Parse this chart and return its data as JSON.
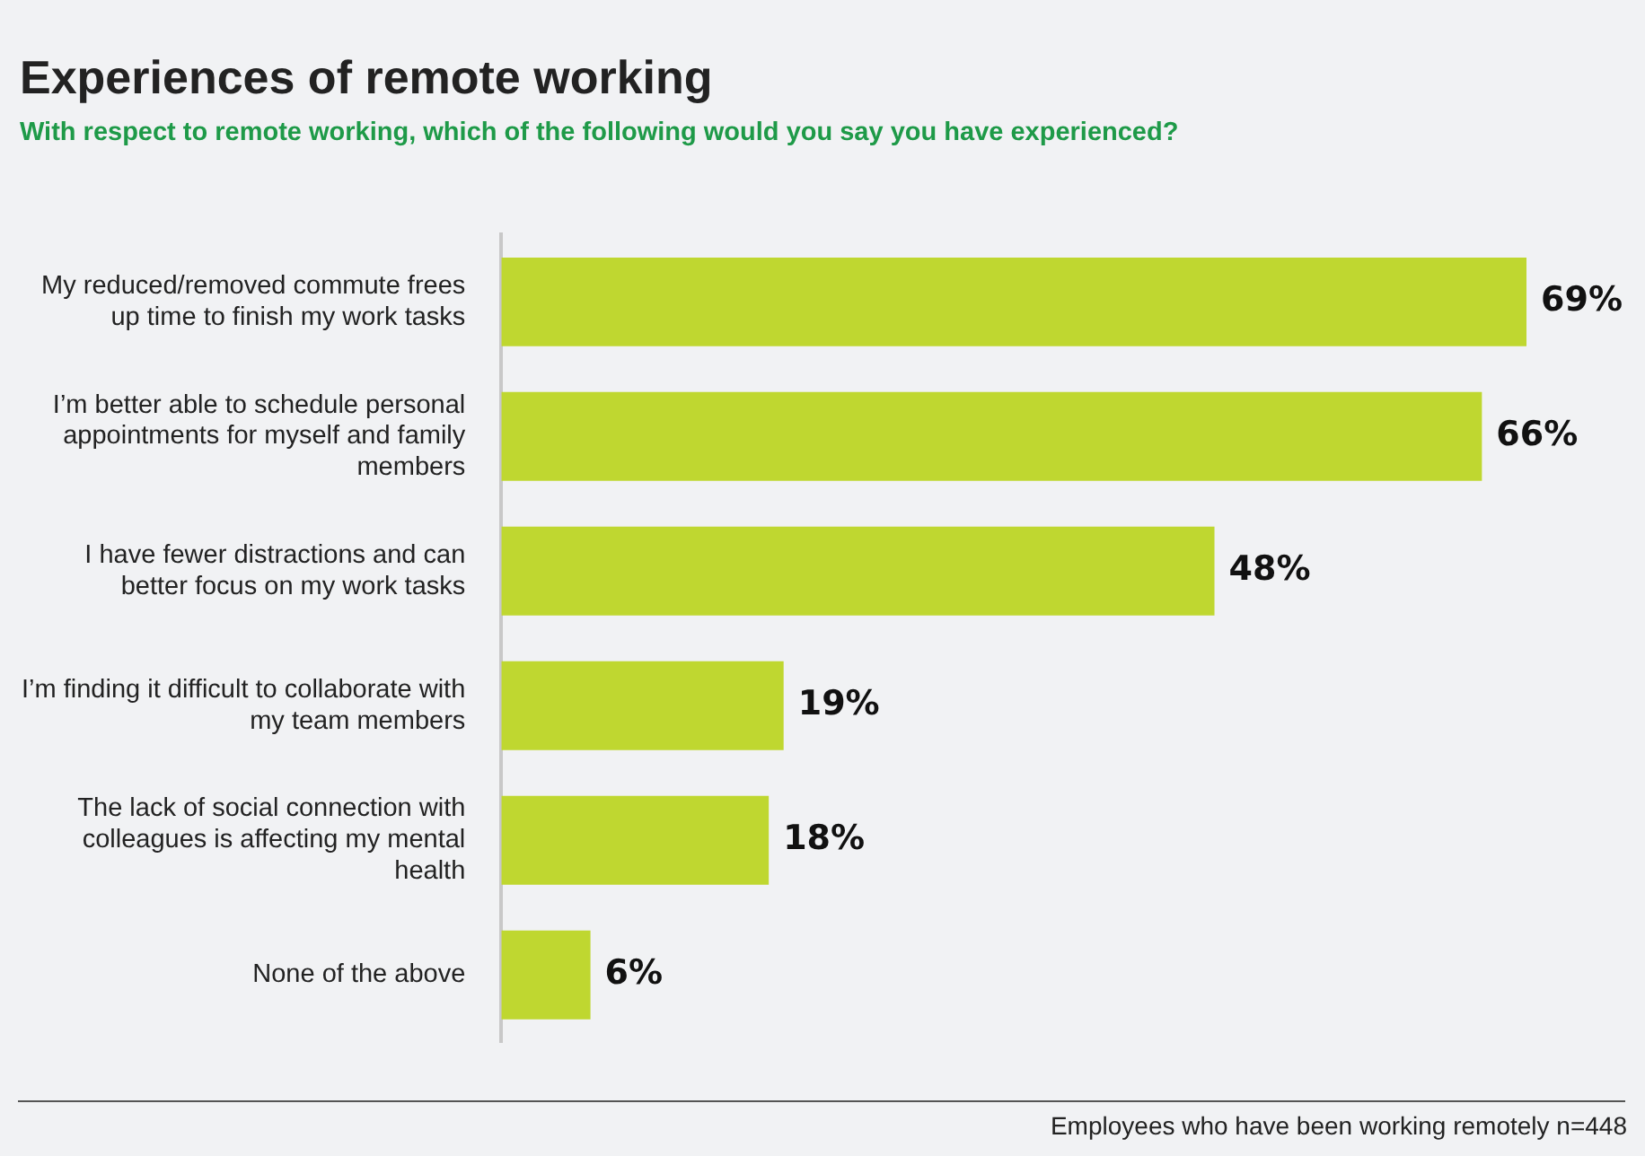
{
  "chart_data": {
    "type": "bar",
    "orientation": "horizontal",
    "title": "Experiences of remote working",
    "subtitle": "With respect to remote working, which of the following would you say you have experienced?",
    "categories": [
      "My reduced/removed commute frees up time to finish my work tasks",
      "I’m better able to schedule personal appointments for myself and family members",
      "I have fewer distractions and can better focus on my work tasks",
      "I’m finding it difficult to collaborate with my team members",
      "The lack of social connection with colleagues is affecting my mental health",
      "None of the above"
    ],
    "values": [
      69,
      66,
      48,
      19,
      18,
      6
    ],
    "value_labels": [
      "69%",
      "66%",
      "48%",
      "19%",
      "18%",
      "6%"
    ],
    "color": "#bfd730",
    "annotations": [
      "Employees who have been working remotely n=448"
    ]
  }
}
